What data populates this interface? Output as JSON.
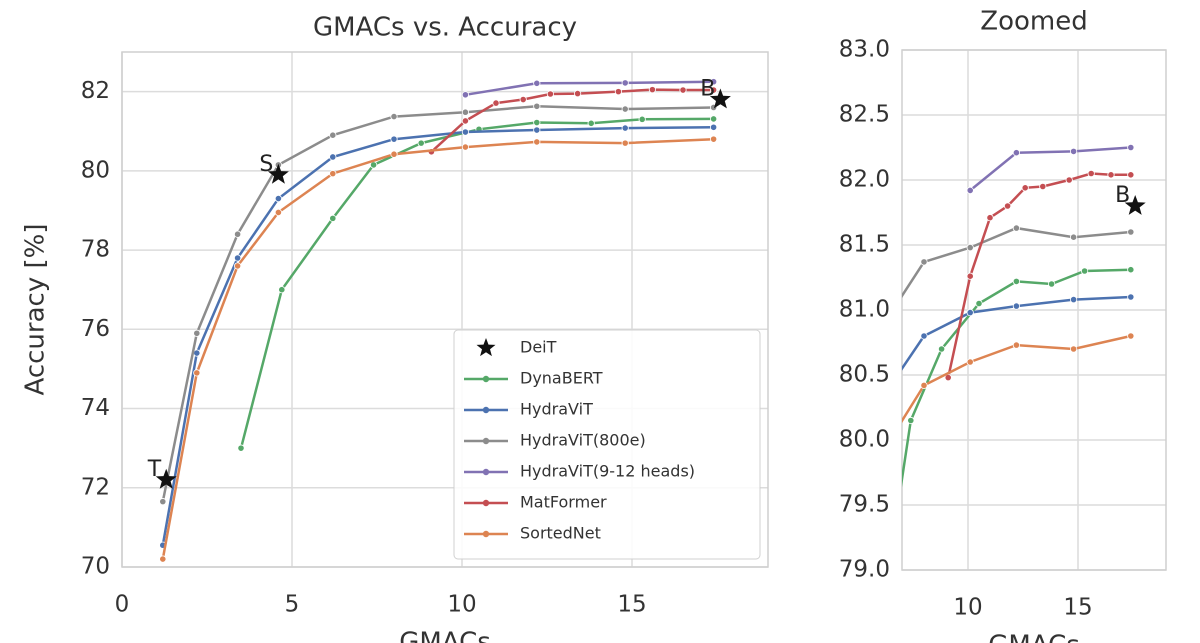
{
  "chart_data": [
    {
      "type": "line",
      "title": "GMACs vs. Accuracy",
      "x_label": "GMACs",
      "y_label": "Accuracy [%]",
      "xlim": [
        0,
        19
      ],
      "ylim": [
        70,
        83
      ],
      "xticks": [
        0,
        5,
        10,
        15
      ],
      "yticks": [
        70,
        72,
        74,
        76,
        78,
        80,
        82
      ],
      "grid": true,
      "legend": "lower right",
      "series": [
        {
          "name": "DeiT",
          "kind": "scatter",
          "marker": "star",
          "color": "#111111",
          "x": [
            1.3,
            4.6,
            17.6
          ],
          "values": [
            72.2,
            79.9,
            81.8
          ],
          "point_labels": [
            "T",
            "S",
            "B"
          ]
        },
        {
          "name": "DynaBERT",
          "color": "#55a868",
          "x": [
            3.5,
            4.7,
            6.2,
            7.4,
            8.8,
            10.5,
            12.2,
            13.8,
            15.3,
            17.4
          ],
          "values": [
            73.0,
            77.0,
            78.8,
            80.15,
            80.7,
            81.05,
            81.22,
            81.2,
            81.3,
            81.31
          ]
        },
        {
          "name": "HydraViT",
          "color": "#4c72b0",
          "x": [
            1.2,
            2.2,
            3.4,
            4.6,
            6.2,
            8.0,
            10.1,
            12.2,
            14.8,
            17.4
          ],
          "values": [
            70.55,
            75.4,
            77.8,
            79.3,
            80.35,
            80.8,
            80.98,
            81.03,
            81.08,
            81.1
          ]
        },
        {
          "name": "HydraViT(800e)",
          "color": "#8c8c8c",
          "x": [
            1.2,
            2.2,
            3.4,
            4.6,
            6.2,
            8.0,
            10.1,
            12.2,
            14.8,
            17.4
          ],
          "values": [
            71.65,
            75.9,
            78.4,
            80.15,
            80.9,
            81.37,
            81.48,
            81.63,
            81.56,
            81.6
          ]
        },
        {
          "name": "HydraViT(9-12 heads)",
          "color": "#8172b3",
          "x": [
            10.1,
            12.2,
            14.8,
            17.4
          ],
          "values": [
            81.92,
            82.21,
            82.22,
            82.25
          ]
        },
        {
          "name": "MatFormer",
          "color": "#c44e52",
          "x": [
            9.1,
            10.1,
            11.0,
            11.8,
            12.6,
            13.4,
            14.6,
            15.6,
            16.5,
            17.4
          ],
          "values": [
            80.48,
            81.26,
            81.71,
            81.8,
            81.94,
            81.95,
            82.0,
            82.05,
            82.04,
            82.04
          ]
        },
        {
          "name": "SortedNet",
          "color": "#dd8452",
          "x": [
            1.2,
            2.2,
            3.4,
            4.6,
            6.2,
            8.0,
            10.1,
            12.2,
            14.8,
            17.4
          ],
          "values": [
            70.2,
            74.9,
            77.6,
            78.95,
            79.93,
            80.42,
            80.6,
            80.73,
            80.7,
            80.8
          ]
        }
      ]
    },
    {
      "type": "line",
      "title": "Zoomed",
      "x_label": "GMACs",
      "xlim": [
        7,
        19
      ],
      "ylim": [
        79,
        83
      ],
      "xticks": [
        10,
        15
      ],
      "yticks": [
        {
          "value": 79,
          "label": "79.0"
        },
        79.5,
        {
          "value": 80,
          "label": "80.0"
        },
        80.5,
        {
          "value": 81,
          "label": "81.0"
        },
        81.5,
        {
          "value": 82,
          "label": "82.0"
        },
        82.5,
        {
          "value": 83,
          "label": "83.0"
        }
      ],
      "grid": true,
      "series": [
        {
          "name": "DeiT",
          "kind": "scatter",
          "marker": "star",
          "color": "#111111",
          "x": [
            17.6
          ],
          "values": [
            81.8
          ],
          "point_labels": [
            "B"
          ]
        },
        {
          "name": "DynaBERT",
          "color": "#55a868",
          "x": [
            6.2,
            7.4,
            8.8,
            10.5,
            12.2,
            13.8,
            15.3,
            17.4
          ],
          "values": [
            78.8,
            80.15,
            80.7,
            81.05,
            81.22,
            81.2,
            81.3,
            81.31
          ]
        },
        {
          "name": "HydraViT",
          "color": "#4c72b0",
          "x": [
            6.2,
            8.0,
            10.1,
            12.2,
            14.8,
            17.4
          ],
          "values": [
            80.35,
            80.8,
            80.98,
            81.03,
            81.08,
            81.1
          ]
        },
        {
          "name": "HydraViT(800e)",
          "color": "#8c8c8c",
          "x": [
            6.2,
            8.0,
            10.1,
            12.2,
            14.8,
            17.4
          ],
          "values": [
            80.9,
            81.37,
            81.48,
            81.63,
            81.56,
            81.6
          ]
        },
        {
          "name": "HydraViT(9-12 heads)",
          "color": "#8172b3",
          "x": [
            10.1,
            12.2,
            14.8,
            17.4
          ],
          "values": [
            81.92,
            82.21,
            82.22,
            82.25
          ]
        },
        {
          "name": "MatFormer",
          "color": "#c44e52",
          "x": [
            9.1,
            10.1,
            11.0,
            11.8,
            12.6,
            13.4,
            14.6,
            15.6,
            16.5,
            17.4
          ],
          "values": [
            80.48,
            81.26,
            81.71,
            81.8,
            81.94,
            81.95,
            82.0,
            82.05,
            82.04,
            82.04
          ]
        },
        {
          "name": "SortedNet",
          "color": "#dd8452",
          "x": [
            6.2,
            8.0,
            10.1,
            12.2,
            14.8,
            17.4
          ],
          "values": [
            79.93,
            80.42,
            80.6,
            80.73,
            80.7,
            80.8
          ]
        }
      ]
    }
  ]
}
